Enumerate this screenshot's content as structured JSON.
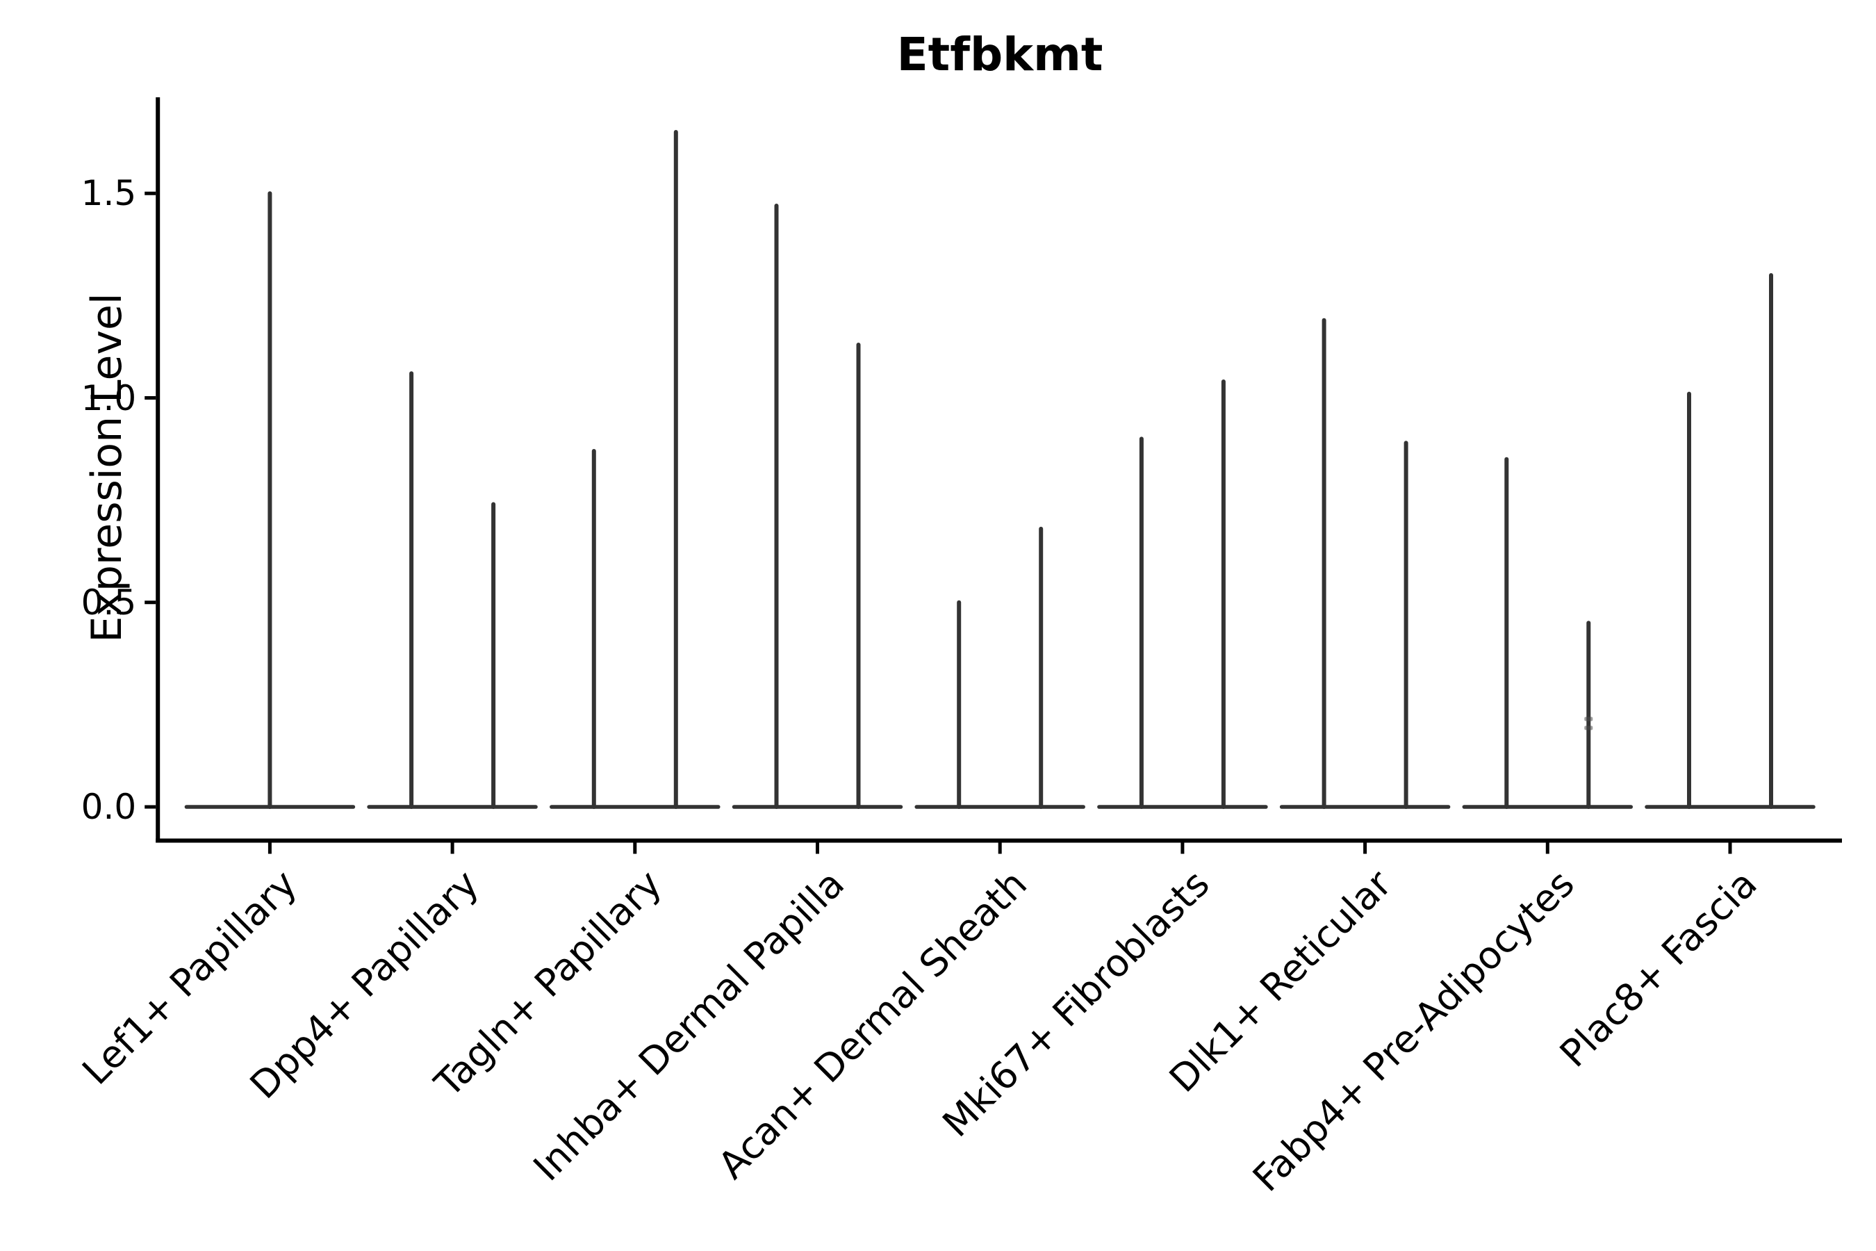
{
  "figure": {
    "title": "Etfbkmt",
    "ylabel": "Expression Level"
  },
  "y_axis": {
    "tick_labels": [
      "0.0",
      "0.5",
      "1.0",
      "1.5"
    ],
    "tick_values": [
      0.0,
      0.5,
      1.0,
      1.5
    ]
  },
  "x_axis": {
    "categories": [
      "Lef1+ Papillary",
      "Dpp4+ Papillary",
      "Tagln+ Papillary",
      "Inhba+ Dermal Papilla",
      "Acan+ Dermal Sheath",
      "Mki67+ Fibroblasts",
      "Dlk1+ Reticular",
      "Fabp4+ Pre-Adipocytes",
      "Plac8+ Fascia"
    ]
  },
  "chart_data": {
    "type": "violin",
    "title": "Etfbkmt",
    "xlabel": "",
    "ylabel": "Expression Level",
    "ylim": [
      -0.08,
      1.73
    ],
    "yticks": [
      0.0,
      0.5,
      1.0,
      1.5
    ],
    "grid": false,
    "legend": "none",
    "violin_color": "#333333",
    "axis_color": "#000000",
    "description": "Violin plot of gene expression; each violin is a flat base at 0 with thin vertical spikes reaching the maximum expression value(s).",
    "violins": [
      {
        "category": "Lef1+ Papillary",
        "baseline_value": 0.0,
        "spikes": [
          {
            "offset": 0,
            "max": 1.5
          }
        ]
      },
      {
        "category": "Dpp4+ Papillary",
        "baseline_value": 0.0,
        "spikes": [
          {
            "offset": -1,
            "max": 1.06
          },
          {
            "offset": 1,
            "max": 0.74
          }
        ]
      },
      {
        "category": "Tagln+ Papillary",
        "baseline_value": 0.0,
        "spikes": [
          {
            "offset": -1,
            "max": 0.87
          },
          {
            "offset": 1,
            "max": 1.65
          }
        ]
      },
      {
        "category": "Inhba+ Dermal Papilla",
        "baseline_value": 0.0,
        "spikes": [
          {
            "offset": -1,
            "max": 1.47
          },
          {
            "offset": 1,
            "max": 1.13
          }
        ]
      },
      {
        "category": "Acan+ Dermal Sheath",
        "baseline_value": 0.0,
        "spikes": [
          {
            "offset": -1,
            "max": 0.5
          },
          {
            "offset": 1,
            "max": 0.68
          }
        ]
      },
      {
        "category": "Mki67+ Fibroblasts",
        "baseline_value": 0.0,
        "spikes": [
          {
            "offset": -1,
            "max": 0.9
          },
          {
            "offset": 1,
            "max": 1.04
          }
        ]
      },
      {
        "category": "Dlk1+ Reticular",
        "baseline_value": 0.0,
        "spikes": [
          {
            "offset": -1,
            "max": 1.19
          },
          {
            "offset": 1,
            "max": 0.89
          }
        ]
      },
      {
        "category": "Fabp4+ Pre-Adipocytes",
        "baseline_value": 0.0,
        "spikes": [
          {
            "offset": -1,
            "max": 0.85
          },
          {
            "offset": 1,
            "max": 0.45
          }
        ]
      },
      {
        "category": "Plac8+ Fascia",
        "baseline_value": 0.0,
        "spikes": [
          {
            "offset": -1,
            "max": 1.01
          },
          {
            "offset": 1,
            "max": 1.3
          }
        ]
      }
    ],
    "artifacts": [
      {
        "category_index": 7,
        "offset": 1,
        "value": 0.215
      },
      {
        "category_index": 7,
        "offset": 1,
        "value": 0.193
      }
    ]
  }
}
